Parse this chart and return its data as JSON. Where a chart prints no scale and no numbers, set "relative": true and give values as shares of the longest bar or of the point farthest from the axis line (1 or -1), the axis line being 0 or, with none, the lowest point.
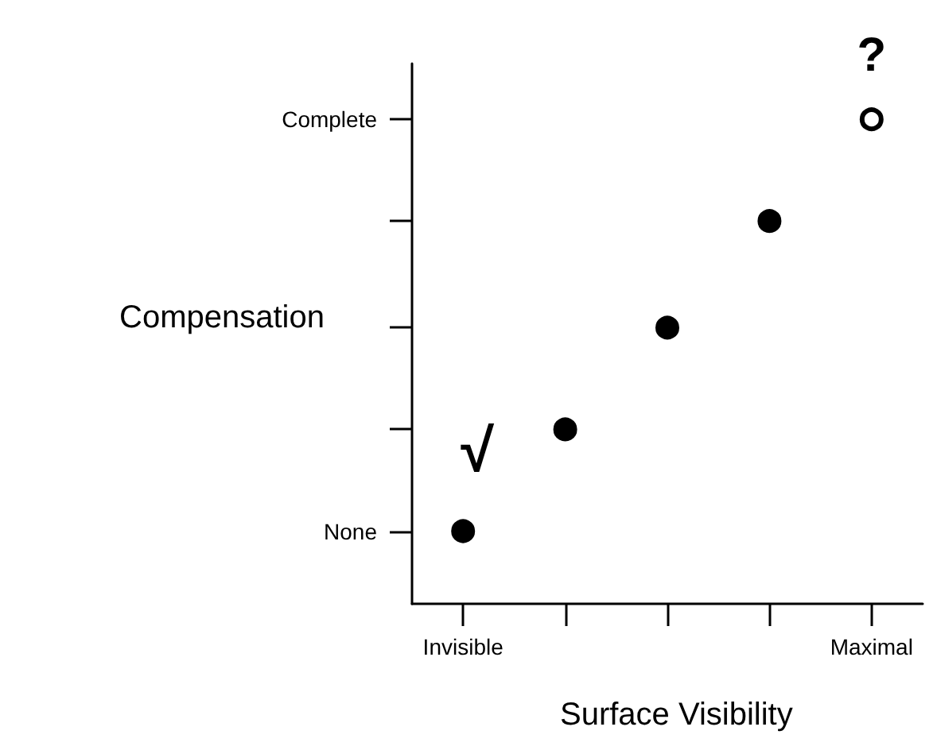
{
  "chart_data": {
    "type": "scatter",
    "xlabel": "Surface Visibility",
    "ylabel": "Compensation",
    "categories": [
      "Invisible",
      null,
      null,
      null,
      "Maximal"
    ],
    "relative": true,
    "series": [
      {
        "color": "#000000",
        "values": [
          0.15,
          0.36,
          0.57,
          0.79,
          null
        ]
      },
      {
        "color": "#ffffff",
        "values": [
          null,
          null,
          null,
          null,
          1
        ]
      }
    ],
    "marker": "circle",
    "grid": false,
    "annotations": [
      "None",
      "Complete",
      "√",
      "?"
    ]
  }
}
